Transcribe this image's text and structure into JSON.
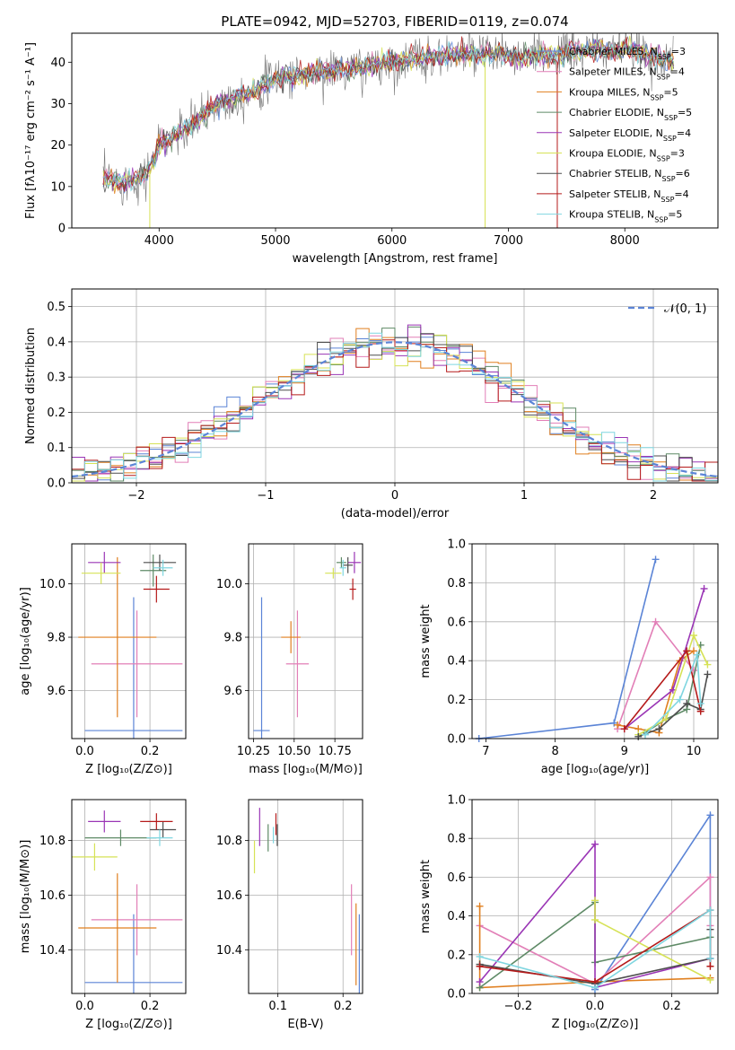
{
  "title": "PLATE=0942, MJD=52703, FIBERID=0119, z=0.074",
  "series_styles": [
    {
      "name": "Chabrier MILES",
      "color": "#5b84d6",
      "nssp": "3"
    },
    {
      "name": "Salpeter MILES",
      "color": "#e27fb7",
      "nssp": "4"
    },
    {
      "name": "Kroupa MILES",
      "color": "#e07f1f",
      "nssp": "5"
    },
    {
      "name": "Chabrier ELODIE",
      "color": "#5e8a66",
      "nssp": "5"
    },
    {
      "name": "Salpeter ELODIE",
      "color": "#9a35b5",
      "nssp": "4"
    },
    {
      "name": "Kroupa ELODIE",
      "color": "#d6e256",
      "nssp": "3"
    },
    {
      "name": "Chabrier STELIB",
      "color": "#4d4d4d",
      "nssp": "6"
    },
    {
      "name": "Salpeter STELIB",
      "color": "#b51a1a",
      "nssp": "4"
    },
    {
      "name": "Kroupa STELIB",
      "color": "#7fd6e0",
      "nssp": "5"
    }
  ],
  "chart_data": [
    {
      "id": "spectrum",
      "type": "line",
      "xlabel": "wavelength [Angstrom, rest frame]",
      "ylabel": "Flux [fλ10⁻¹⁷ erg cm⁻² s⁻¹ A⁻¹]",
      "xlim": [
        3250,
        8800
      ],
      "ylim": [
        0,
        47
      ],
      "xticks": [
        4000,
        5000,
        6000,
        7000,
        8000
      ],
      "yticks": [
        0,
        10,
        20,
        30,
        40
      ],
      "legend": "right",
      "legend_entries": [
        {
          "label": "Chabrier MILES, N",
          "sub": "SSP",
          "val": "=3"
        },
        {
          "label": "Salpeter MILES, N",
          "sub": "SSP",
          "val": "=4"
        },
        {
          "label": "Kroupa MILES, N",
          "sub": "SSP",
          "val": "=5"
        },
        {
          "label": "Chabrier ELODIE, N",
          "sub": "SSP",
          "val": "=5"
        },
        {
          "label": "Salpeter ELODIE, N",
          "sub": "SSP",
          "val": "=4"
        },
        {
          "label": "Kroupa ELODIE, N",
          "sub": "SSP",
          "val": "=3"
        },
        {
          "label": "Chabrier STELIB, N",
          "sub": "SSP",
          "val": "=6"
        },
        {
          "label": "Salpeter STELIB, N",
          "sub": "SSP",
          "val": "=4"
        },
        {
          "label": "Kroupa STELIB, N",
          "sub": "SSP",
          "val": "=5"
        }
      ],
      "continuum": {
        "x": [
          3520,
          3700,
          3900,
          4000,
          4200,
          4500,
          4800,
          5000,
          5200,
          5500,
          5800,
          6000,
          6300,
          6600,
          6900,
          7100,
          7400,
          7700,
          8000,
          8200,
          8400
        ],
        "y": [
          12,
          11,
          13,
          20,
          23,
          30,
          33,
          36,
          37,
          38,
          39,
          40,
          41,
          42,
          42,
          41,
          42,
          43,
          43,
          42,
          40
        ]
      }
    },
    {
      "id": "residuals",
      "type": "histogram",
      "xlabel": "(data-model)/error",
      "ylabel": "Normed distribution",
      "xlim": [
        -2.5,
        2.5
      ],
      "ylim": [
        0,
        0.55
      ],
      "xticks": [
        -2,
        -1,
        0,
        1,
        2
      ],
      "yticks": [
        0.0,
        0.1,
        0.2,
        0.3,
        0.4,
        0.5
      ],
      "grid": true,
      "legend": "top-right",
      "legend_label": "𝒩(0, 1)",
      "bin_edges_start": -2.5,
      "bin_width": 0.1,
      "reference_curve": "normal(0,1)"
    },
    {
      "id": "age_vs_Z",
      "type": "scatter-errorbar",
      "xlabel": "Z [log₁₀(Z/Z⊙)]",
      "ylabel": "age  [log₁₀(age/yr)]",
      "xlim": [
        -0.04,
        0.31
      ],
      "ylim": [
        9.42,
        10.15
      ],
      "xticks": [
        0.0,
        0.2
      ],
      "yticks": [
        9.6,
        9.8,
        10.0
      ],
      "grid": true,
      "points": [
        {
          "x": 0.15,
          "xerr": 0.15,
          "y": 9.45,
          "yerr": 0.5
        },
        {
          "x": 0.16,
          "xerr": 0.14,
          "y": 9.7,
          "yerr": 0.2
        },
        {
          "x": 0.1,
          "xerr": 0.12,
          "y": 9.8,
          "yerr": 0.3
        },
        {
          "x": 0.21,
          "xerr": 0.04,
          "y": 10.05,
          "yerr": 0.06
        },
        {
          "x": 0.06,
          "xerr": 0.05,
          "y": 10.08,
          "yerr": 0.04
        },
        {
          "x": 0.05,
          "xerr": 0.06,
          "y": 10.04,
          "yerr": 0.04
        },
        {
          "x": 0.23,
          "xerr": 0.05,
          "y": 10.08,
          "yerr": 0.03
        },
        {
          "x": 0.22,
          "xerr": 0.04,
          "y": 9.98,
          "yerr": 0.05
        },
        {
          "x": 0.24,
          "xerr": 0.03,
          "y": 10.06,
          "yerr": 0.03
        }
      ]
    },
    {
      "id": "age_vs_mass",
      "type": "scatter-errorbar",
      "xlabel": "mass [log₁₀(M/M⊙)]",
      "ylabel": "",
      "xlim": [
        10.22,
        10.92
      ],
      "ylim": [
        9.42,
        10.15
      ],
      "xticks": [
        10.25,
        10.5,
        10.75
      ],
      "yticks": [
        9.6,
        9.8,
        10.0
      ],
      "grid": true,
      "points": [
        {
          "x": 10.3,
          "xerr": 0.05,
          "y": 9.45,
          "yerr": 0.5
        },
        {
          "x": 10.52,
          "xerr": 0.07,
          "y": 9.7,
          "yerr": 0.2
        },
        {
          "x": 10.48,
          "xerr": 0.06,
          "y": 9.8,
          "yerr": 0.06
        },
        {
          "x": 10.79,
          "xerr": 0.03,
          "y": 10.08,
          "yerr": 0.02
        },
        {
          "x": 10.87,
          "xerr": 0.04,
          "y": 10.08,
          "yerr": 0.04
        },
        {
          "x": 10.74,
          "xerr": 0.05,
          "y": 10.04,
          "yerr": 0.02
        },
        {
          "x": 10.83,
          "xerr": 0.03,
          "y": 10.07,
          "yerr": 0.03
        },
        {
          "x": 10.86,
          "xerr": 0.02,
          "y": 9.98,
          "yerr": 0.04
        },
        {
          "x": 10.8,
          "xerr": 0.02,
          "y": 10.06,
          "yerr": 0.03
        }
      ]
    },
    {
      "id": "weight_vs_age",
      "type": "line",
      "xlabel": "age  [log₁₀(age/yr)]",
      "ylabel": "mass weight",
      "xlim": [
        6.8,
        10.35
      ],
      "ylim": [
        0,
        1.0
      ],
      "xticks": [
        7,
        8,
        9,
        10
      ],
      "yticks": [
        0.0,
        0.2,
        0.4,
        0.6,
        0.8,
        1.0
      ],
      "grid": true,
      "series": [
        {
          "x": [
            6.9,
            8.85,
            9.45
          ],
          "y": [
            0.0,
            0.08,
            0.92
          ]
        },
        {
          "x": [
            8.9,
            9.45,
            10.0
          ],
          "y": [
            0.05,
            0.6,
            0.35
          ]
        },
        {
          "x": [
            8.9,
            9.2,
            9.5,
            9.8,
            10.0
          ],
          "y": [
            0.07,
            0.05,
            0.03,
            0.4,
            0.45
          ]
        },
        {
          "x": [
            9.3,
            9.6,
            9.9,
            10.1
          ],
          "y": [
            0.03,
            0.1,
            0.15,
            0.48
          ]
        },
        {
          "x": [
            9.0,
            9.7,
            10.15
          ],
          "y": [
            0.05,
            0.25,
            0.77
          ]
        },
        {
          "x": [
            9.2,
            9.6,
            10.0,
            10.2
          ],
          "y": [
            0.02,
            0.1,
            0.53,
            0.38
          ]
        },
        {
          "x": [
            9.2,
            9.5,
            9.9,
            10.1,
            10.2
          ],
          "y": [
            0.01,
            0.05,
            0.18,
            0.15,
            0.33
          ]
        },
        {
          "x": [
            9.0,
            9.9,
            10.1
          ],
          "y": [
            0.05,
            0.45,
            0.14
          ]
        },
        {
          "x": [
            9.3,
            9.8,
            10.05,
            10.1
          ],
          "y": [
            0.02,
            0.2,
            0.43,
            0.18
          ]
        }
      ]
    },
    {
      "id": "mass_vs_Z",
      "type": "scatter-errorbar",
      "xlabel": "Z [log₁₀(Z/Z⊙)]",
      "ylabel": "mass [log₁₀(M/M⊙)]",
      "xlim": [
        -0.04,
        0.31
      ],
      "ylim": [
        10.24,
        10.95
      ],
      "xticks": [
        0.0,
        0.2
      ],
      "yticks": [
        10.4,
        10.6,
        10.8
      ],
      "grid": true,
      "points": [
        {
          "x": 0.15,
          "xerr": 0.15,
          "y": 10.28,
          "yerr": 0.25
        },
        {
          "x": 0.16,
          "xerr": 0.14,
          "y": 10.51,
          "yerr": 0.13
        },
        {
          "x": 0.1,
          "xerr": 0.12,
          "y": 10.48,
          "yerr": 0.2
        },
        {
          "x": 0.11,
          "xerr": 0.11,
          "y": 10.81,
          "yerr": 0.03
        },
        {
          "x": 0.06,
          "xerr": 0.05,
          "y": 10.87,
          "yerr": 0.04
        },
        {
          "x": 0.03,
          "xerr": 0.07,
          "y": 10.74,
          "yerr": 0.05
        },
        {
          "x": 0.24,
          "xerr": 0.04,
          "y": 10.84,
          "yerr": 0.03
        },
        {
          "x": 0.22,
          "xerr": 0.05,
          "y": 10.87,
          "yerr": 0.03
        },
        {
          "x": 0.23,
          "xerr": 0.04,
          "y": 10.81,
          "yerr": 0.03
        }
      ]
    },
    {
      "id": "mass_vs_ebv",
      "type": "scatter-errorbar",
      "xlabel": "E(B-V)",
      "ylabel": "",
      "xlim": [
        0.055,
        0.23
      ],
      "ylim": [
        10.24,
        10.95
      ],
      "xticks": [
        0.1,
        0.2
      ],
      "yticks": [
        10.4,
        10.6,
        10.8
      ],
      "grid": true,
      "points": [
        {
          "x": 0.225,
          "xerr": 0.0,
          "y": 10.28,
          "yerr": 0.25
        },
        {
          "x": 0.213,
          "xerr": 0.0,
          "y": 10.51,
          "yerr": 0.13
        },
        {
          "x": 0.22,
          "xerr": 0.0,
          "y": 10.42,
          "yerr": 0.15
        },
        {
          "x": 0.085,
          "xerr": 0.0,
          "y": 10.81,
          "yerr": 0.05
        },
        {
          "x": 0.072,
          "xerr": 0.0,
          "y": 10.85,
          "yerr": 0.07
        },
        {
          "x": 0.064,
          "xerr": 0.0,
          "y": 10.74,
          "yerr": 0.06
        },
        {
          "x": 0.099,
          "xerr": 0.0,
          "y": 10.82,
          "yerr": 0.04
        },
        {
          "x": 0.097,
          "xerr": 0.0,
          "y": 10.86,
          "yerr": 0.04
        },
        {
          "x": 0.093,
          "xerr": 0.0,
          "y": 10.82,
          "yerr": 0.03
        }
      ]
    },
    {
      "id": "weight_vs_Z",
      "type": "line",
      "xlabel": "Z [log₁₀(Z/Z⊙)]",
      "ylabel": "mass weight",
      "xlim": [
        -0.32,
        0.32
      ],
      "ylim": [
        0,
        1.0
      ],
      "xticks": [
        -0.2,
        0.0,
        0.2
      ],
      "yticks": [
        0.0,
        0.2,
        0.4,
        0.6,
        0.8,
        1.0
      ],
      "grid": true,
      "series": [
        {
          "x": [
            0.0,
            0.0,
            0.3,
            0.3
          ],
          "y": [
            0.05,
            0.02,
            0.92,
            0.18
          ]
        },
        {
          "x": [
            -0.3,
            0.0,
            0.3,
            0.3
          ],
          "y": [
            0.35,
            0.05,
            0.6,
            0.35
          ]
        },
        {
          "x": [
            -0.3,
            -0.3,
            0.0,
            0.3
          ],
          "y": [
            0.45,
            0.03,
            0.06,
            0.08
          ]
        },
        {
          "x": [
            -0.3,
            0.0,
            0.0,
            0.3
          ],
          "y": [
            0.03,
            0.47,
            0.16,
            0.29
          ]
        },
        {
          "x": [
            -0.3,
            0.0,
            0.0,
            0.3
          ],
          "y": [
            0.06,
            0.77,
            0.03,
            0.18
          ]
        },
        {
          "x": [
            0.0,
            0.0,
            0.3
          ],
          "y": [
            0.48,
            0.38,
            0.07
          ]
        },
        {
          "x": [
            -0.3,
            0.0,
            0.3,
            0.3
          ],
          "y": [
            0.15,
            0.05,
            0.18,
            0.33
          ]
        },
        {
          "x": [
            -0.3,
            0.0,
            0.3,
            0.3
          ],
          "y": [
            0.14,
            0.06,
            0.43,
            0.14
          ]
        },
        {
          "x": [
            -0.3,
            0.0,
            0.3,
            0.3
          ],
          "y": [
            0.19,
            0.03,
            0.43,
            0.18
          ]
        }
      ]
    }
  ]
}
